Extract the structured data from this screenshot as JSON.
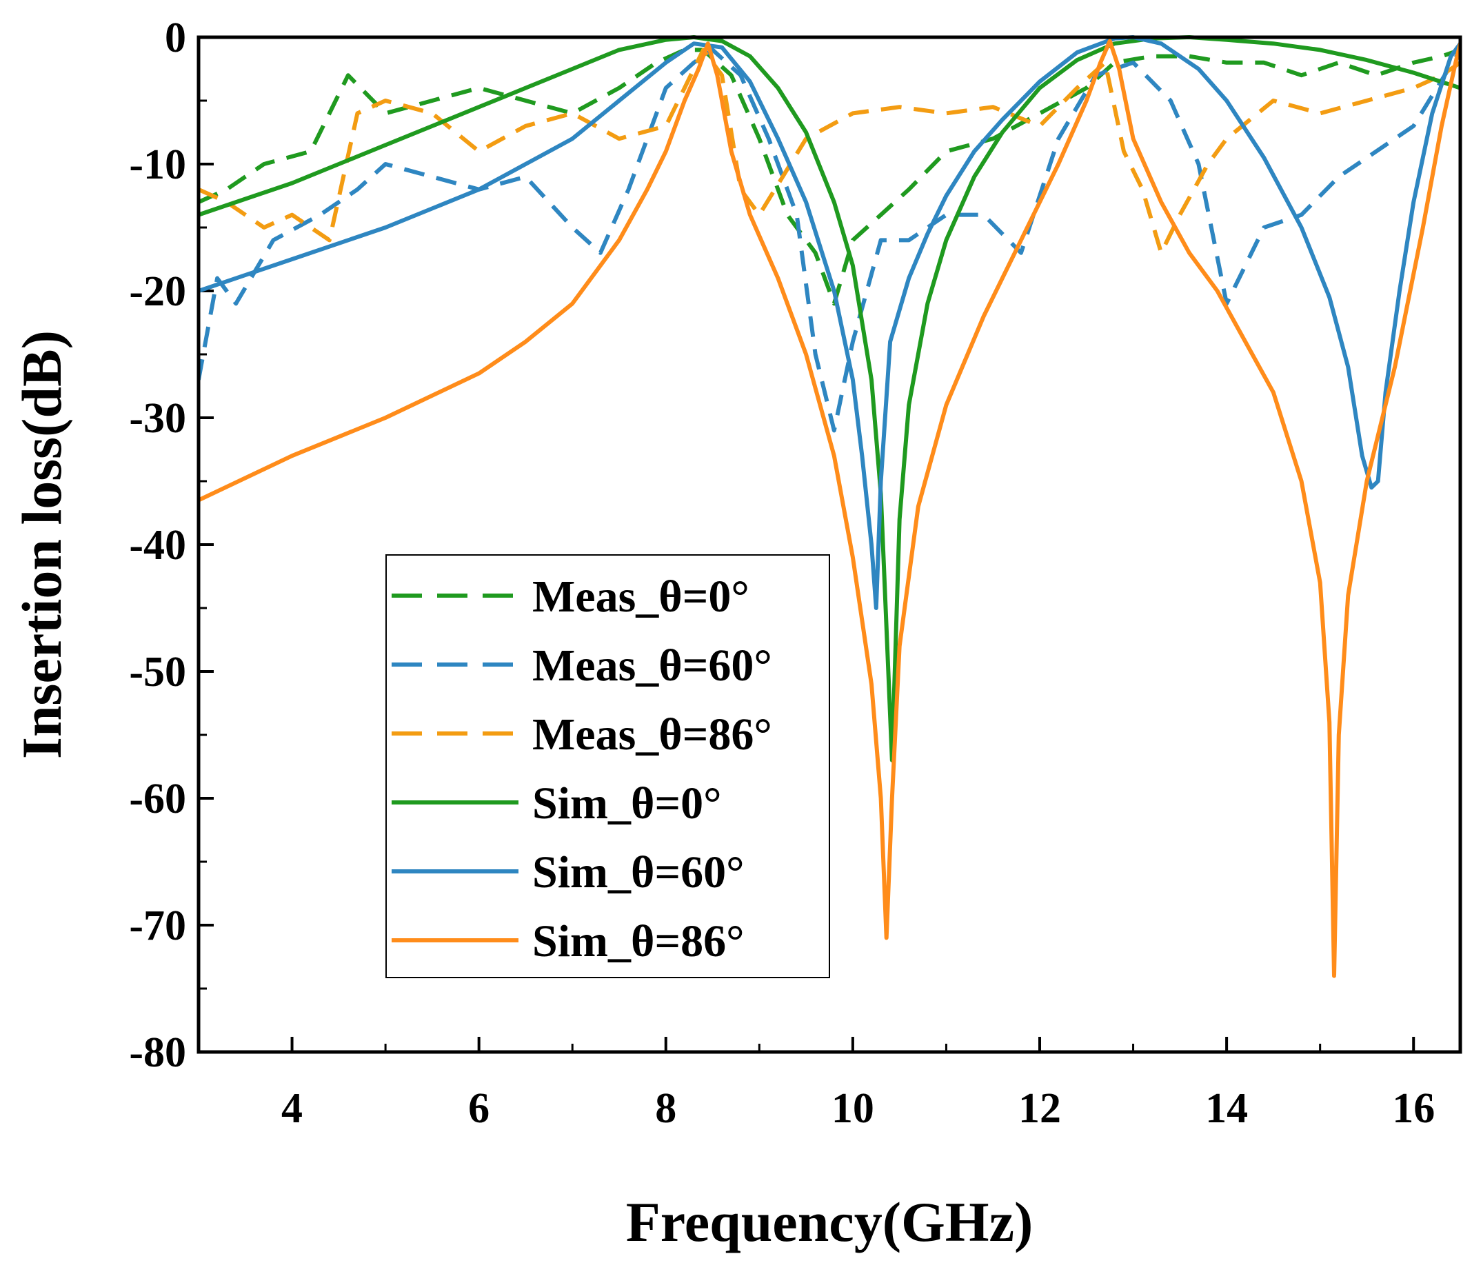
{
  "chart_data": {
    "type": "line",
    "title": "",
    "xlabel": "Frequency(GHz)",
    "ylabel": "Insertion loss(dB)",
    "xlim": [
      3,
      16.5
    ],
    "ylim": [
      -80,
      0
    ],
    "xticks": [
      4,
      6,
      8,
      10,
      12,
      14,
      16
    ],
    "yticks": [
      0,
      -10,
      -20,
      -30,
      -40,
      -50,
      -60,
      -70,
      -80
    ],
    "xtick_labels": [
      "4",
      "6",
      "8",
      "10",
      "12",
      "14",
      "16"
    ],
    "ytick_labels": [
      "0",
      "-10",
      "-20",
      "-30",
      "-40",
      "-50",
      "-60",
      "-70",
      "-80"
    ],
    "grid": false,
    "legend_position": "lower-left-center",
    "series": [
      {
        "name": "Meas_θ=0°",
        "style": "dashed",
        "color": "#1f9a1f",
        "x": [
          3.0,
          3.3,
          3.7,
          4.2,
          4.6,
          5.0,
          5.5,
          6.0,
          6.5,
          7.0,
          7.5,
          7.9,
          8.2,
          8.4,
          8.7,
          9.0,
          9.3,
          9.6,
          9.8,
          10.0,
          10.3,
          10.6,
          11.0,
          11.5,
          12.0,
          12.5,
          12.8,
          13.2,
          13.6,
          14.0,
          14.4,
          14.8,
          15.2,
          15.6,
          16.0,
          16.3,
          16.5
        ],
        "y": [
          -13,
          -12,
          -10,
          -9,
          -3,
          -6,
          -5,
          -4,
          -5,
          -6,
          -4,
          -2,
          -1,
          -1,
          -3,
          -8,
          -14,
          -17,
          -21,
          -16,
          -14,
          -12,
          -9,
          -8,
          -6,
          -4,
          -2,
          -1.5,
          -1.5,
          -2,
          -2,
          -3,
          -2,
          -3,
          -2,
          -1.5,
          -1
        ]
      },
      {
        "name": "Meas_θ=60°",
        "style": "dashed",
        "color": "#2e86c1",
        "x": [
          3.0,
          3.2,
          3.4,
          3.8,
          4.3,
          4.7,
          5.0,
          5.5,
          6.0,
          6.5,
          7.0,
          7.3,
          7.6,
          8.0,
          8.3,
          8.5,
          8.8,
          9.1,
          9.4,
          9.6,
          9.8,
          10.0,
          10.3,
          10.6,
          11.0,
          11.4,
          11.8,
          12.2,
          12.6,
          13.0,
          13.4,
          13.7,
          14.0,
          14.4,
          14.8,
          15.2,
          15.6,
          16.0,
          16.5
        ],
        "y": [
          -27,
          -19,
          -21,
          -16,
          -14,
          -12,
          -10,
          -11,
          -12,
          -11,
          -15,
          -17,
          -12,
          -4,
          -2,
          -1,
          -3,
          -8,
          -14,
          -25,
          -31,
          -24,
          -16,
          -16,
          -14,
          -14,
          -17,
          -8,
          -3,
          -2,
          -5,
          -10,
          -21,
          -15,
          -14,
          -11,
          -9,
          -7,
          -1
        ]
      },
      {
        "name": "Meas_θ=86°",
        "style": "dashed",
        "color": "#f39c12",
        "x": [
          3.0,
          3.3,
          3.7,
          4.0,
          4.4,
          4.7,
          5.0,
          5.5,
          6.0,
          6.5,
          7.0,
          7.5,
          8.0,
          8.4,
          8.6,
          8.8,
          9.0,
          9.5,
          10.0,
          10.5,
          11.0,
          11.5,
          12.0,
          12.4,
          12.7,
          12.9,
          13.1,
          13.3,
          13.5,
          13.8,
          14.0,
          14.5,
          15.0,
          15.5,
          16.0,
          16.3,
          16.5
        ],
        "y": [
          -12,
          -13,
          -15,
          -14,
          -16,
          -6,
          -5,
          -6,
          -9,
          -7,
          -6,
          -8,
          -7,
          -1,
          -3,
          -12,
          -14,
          -8,
          -6,
          -5.5,
          -6,
          -5.5,
          -7,
          -4,
          -2,
          -9,
          -12,
          -17,
          -14,
          -10,
          -8,
          -5,
          -6,
          -5,
          -4,
          -3,
          -2
        ]
      },
      {
        "name": "Sim_θ=0°",
        "style": "solid",
        "color": "#1f9a1f",
        "x": [
          3.0,
          4.0,
          5.0,
          6.0,
          7.0,
          7.5,
          8.0,
          8.3,
          8.6,
          8.9,
          9.2,
          9.5,
          9.8,
          10.0,
          10.2,
          10.3,
          10.38,
          10.42,
          10.5,
          10.6,
          10.8,
          11.0,
          11.3,
          11.6,
          12.0,
          12.4,
          12.8,
          13.2,
          13.6,
          14.0,
          14.5,
          15.0,
          15.5,
          16.0,
          16.5
        ],
        "y": [
          -14,
          -11.5,
          -8.5,
          -5.5,
          -2.5,
          -1,
          -0.2,
          0,
          -0.3,
          -1.5,
          -4,
          -7.5,
          -13,
          -18,
          -27,
          -36,
          -50,
          -57,
          -38,
          -29,
          -21,
          -16,
          -11,
          -7.5,
          -4,
          -1.8,
          -0.5,
          -0.1,
          0,
          -0.2,
          -0.5,
          -1,
          -1.8,
          -2.8,
          -4
        ]
      },
      {
        "name": "Sim_θ=60°",
        "style": "solid",
        "color": "#2e86c1",
        "x": [
          3.0,
          4.0,
          5.0,
          6.0,
          7.0,
          7.5,
          8.0,
          8.3,
          8.6,
          8.9,
          9.2,
          9.5,
          9.8,
          10.0,
          10.1,
          10.2,
          10.25,
          10.3,
          10.4,
          10.6,
          10.8,
          11.0,
          11.3,
          11.6,
          12.0,
          12.4,
          12.8,
          13.0,
          13.3,
          13.7,
          14.0,
          14.4,
          14.8,
          15.1,
          15.3,
          15.45,
          15.55,
          15.62,
          15.7,
          15.85,
          16.0,
          16.2,
          16.4,
          16.5
        ],
        "y": [
          -20,
          -17.5,
          -15,
          -12,
          -8,
          -5,
          -2,
          -0.5,
          -0.8,
          -3.5,
          -8,
          -13,
          -20,
          -27,
          -33,
          -40,
          -45,
          -35,
          -24,
          -19,
          -15.5,
          -12.5,
          -9,
          -6.5,
          -3.5,
          -1.2,
          -0.1,
          0,
          -0.5,
          -2.5,
          -5,
          -9.5,
          -15,
          -20.5,
          -26,
          -33,
          -35.5,
          -35,
          -28,
          -20,
          -13,
          -6,
          -1.5,
          -0.5
        ]
      },
      {
        "name": "Sim_θ=86°",
        "style": "solid",
        "color": "#ff8c1a",
        "x": [
          3.0,
          4.0,
          5.0,
          6.0,
          6.5,
          7.0,
          7.5,
          7.8,
          8.0,
          8.2,
          8.35,
          8.45,
          8.55,
          8.7,
          8.9,
          9.2,
          9.5,
          9.8,
          10.0,
          10.2,
          10.3,
          10.36,
          10.42,
          10.5,
          10.7,
          11.0,
          11.4,
          11.8,
          12.2,
          12.5,
          12.65,
          12.75,
          12.85,
          13.0,
          13.3,
          13.6,
          13.9,
          14.2,
          14.5,
          14.8,
          15.0,
          15.1,
          15.15,
          15.2,
          15.3,
          15.5,
          15.8,
          16.1,
          16.3,
          16.45,
          16.5
        ],
        "y": [
          -36.5,
          -33,
          -30,
          -26.5,
          -24,
          -21,
          -16,
          -12,
          -9,
          -5,
          -2.5,
          -0.5,
          -3,
          -9,
          -14,
          -19,
          -25,
          -33,
          -41,
          -51,
          -60,
          -71,
          -60,
          -48,
          -37,
          -29,
          -22,
          -16,
          -10,
          -5,
          -2,
          -0.3,
          -2.5,
          -8,
          -13,
          -17,
          -20,
          -24,
          -28,
          -35,
          -43,
          -54,
          -74,
          -55,
          -44,
          -35,
          -26,
          -15,
          -7,
          -2,
          -0.5
        ]
      }
    ]
  },
  "legend": {
    "items": [
      {
        "label": "Meas_θ=0°",
        "color": "#1f9a1f",
        "dashed": true
      },
      {
        "label": "Meas_θ=60°",
        "color": "#2e86c1",
        "dashed": true
      },
      {
        "label": "Meas_θ=86°",
        "color": "#f39c12",
        "dashed": true
      },
      {
        "label": "Sim_θ=0°",
        "color": "#1f9a1f",
        "dashed": false
      },
      {
        "label": "Sim_θ=60°",
        "color": "#2e86c1",
        "dashed": false
      },
      {
        "label": "Sim_θ=86°",
        "color": "#ff8c1a",
        "dashed": false
      }
    ]
  }
}
